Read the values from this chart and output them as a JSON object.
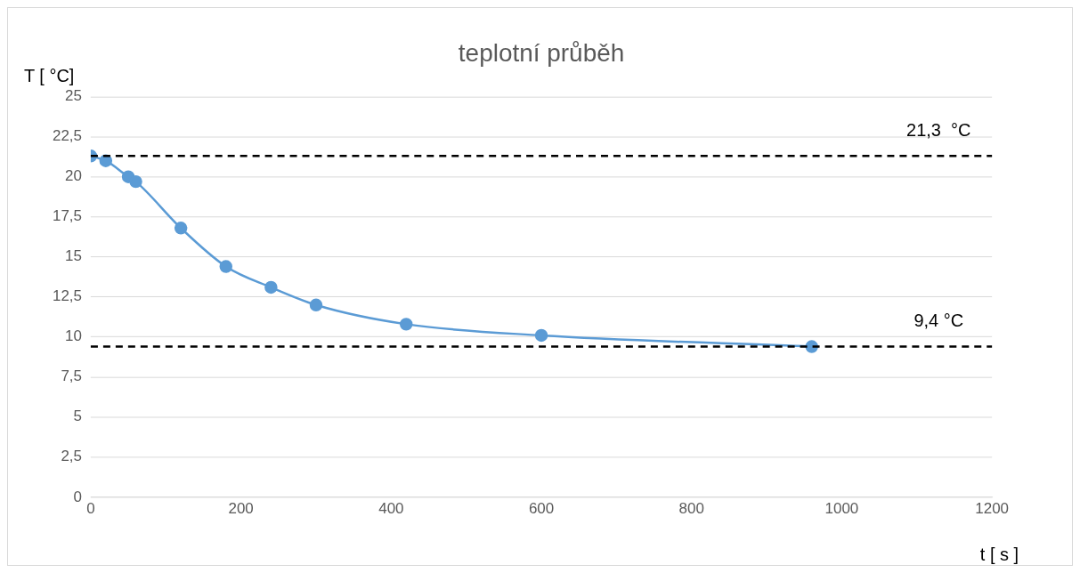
{
  "chart_data": {
    "type": "line",
    "title": "teplotní průběh",
    "xlabel": "t [ s ]",
    "ylabel": "T [ °C]",
    "x": [
      0,
      20,
      50,
      60,
      120,
      180,
      240,
      300,
      420,
      600,
      960
    ],
    "series": [
      {
        "color": "#5b9bd5",
        "values": [
          21.3,
          21.0,
          20.0,
          19.7,
          16.8,
          14.4,
          13.1,
          12.0,
          10.8,
          10.1,
          9.4
        ]
      }
    ],
    "xlim": [
      0,
      1200
    ],
    "xticks": [
      0,
      200,
      400,
      600,
      800,
      1000,
      1200
    ],
    "ylim": [
      0,
      25
    ],
    "yticks": [
      0,
      {
        "value": 2.5,
        "label": "2,5"
      },
      5,
      {
        "value": 7.5,
        "label": "7,5"
      },
      10,
      {
        "value": 12.5,
        "label": "12,5"
      },
      15,
      {
        "value": 17.5,
        "label": "17,5"
      },
      20,
      {
        "value": 22.5,
        "label": "22,5"
      },
      25
    ],
    "ref_lines": [
      {
        "axis": "y",
        "value": 21.3,
        "label": "21,3  °C",
        "color": "#000000",
        "line_style": "dashed"
      },
      {
        "axis": "y",
        "value": 9.4,
        "label": "9,4 °C",
        "color": "#000000",
        "line_style": "dashed"
      }
    ],
    "grid": "y",
    "legend": false,
    "marker": "circle",
    "line_style": "solid"
  }
}
